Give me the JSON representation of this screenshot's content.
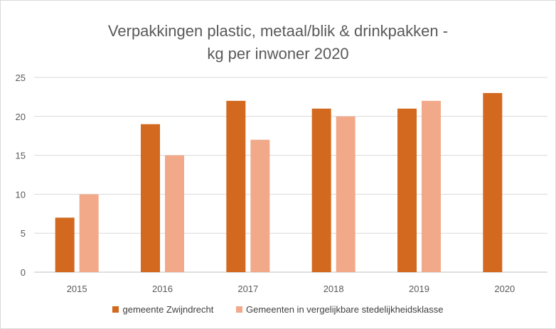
{
  "chart_data": {
    "type": "bar",
    "title_lines": [
      "Verpakkingen plastic, metaal/blik & drinkpakken -",
      "kg per inwoner 2020"
    ],
    "categories": [
      "2015",
      "2016",
      "2017",
      "2018",
      "2019",
      "2020"
    ],
    "series": [
      {
        "name": "gemeente Zwijndrecht",
        "color": "#d2691e",
        "values": [
          7,
          19,
          22,
          21,
          21,
          23
        ]
      },
      {
        "name": "Gemeenten in vergelijkbare stedelijkheidsklasse",
        "color": "#f2a98a",
        "values": [
          10,
          15,
          17,
          20,
          22,
          null
        ]
      }
    ],
    "ylim": [
      0,
      25
    ],
    "yticks": [
      0,
      5,
      10,
      15,
      20,
      25
    ],
    "grid": true,
    "legend_position": "bottom"
  }
}
